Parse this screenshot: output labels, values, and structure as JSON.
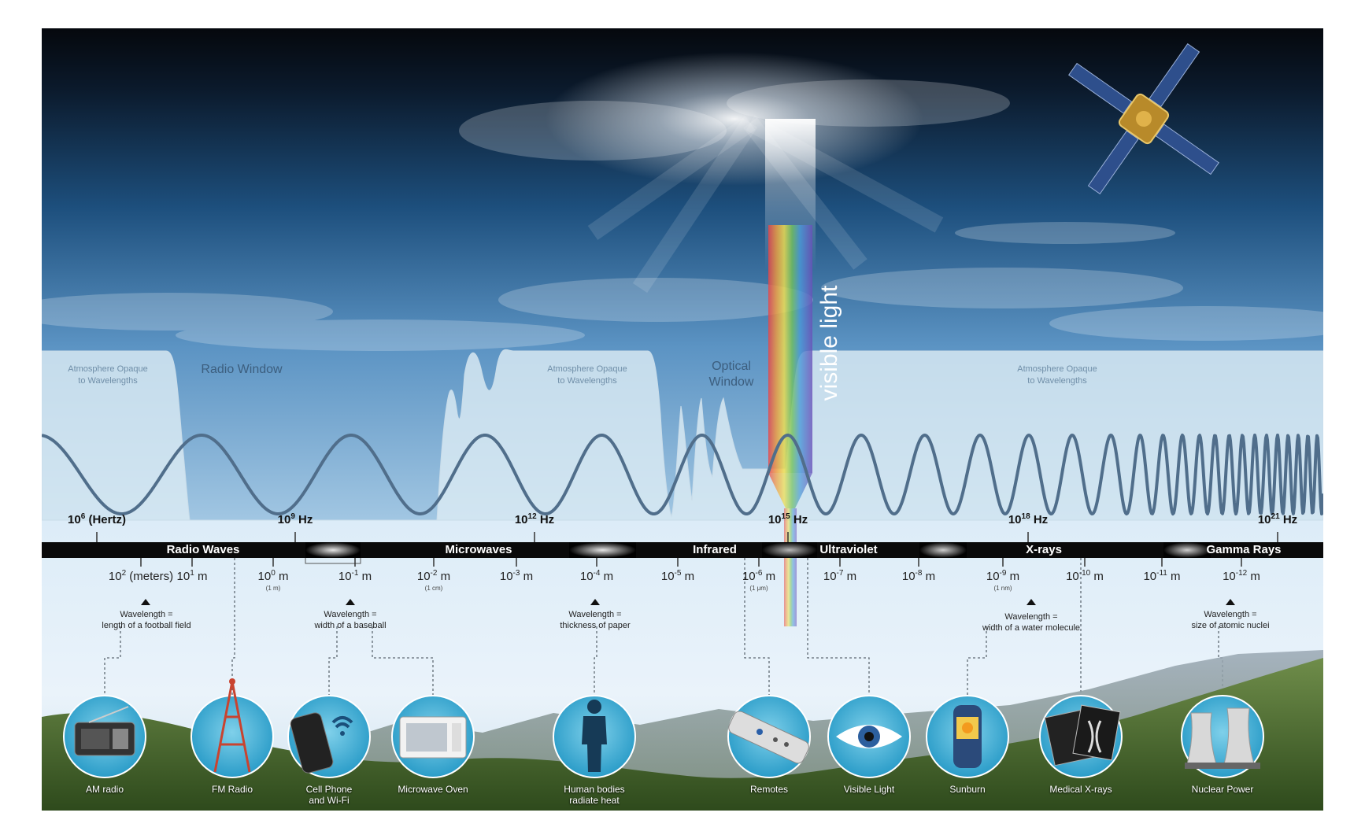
{
  "visible_light_label": "visible light",
  "regions": {
    "opaque": [
      "Atmosphere Opaque\nto Wavelengths",
      "Atmosphere Opaque\nto Wavelengths",
      "Atmosphere Opaque\nto Wavelengths"
    ],
    "radio_window": "Radio Window",
    "optical_window": "Optical\nWindow"
  },
  "frequency_ticks": [
    {
      "base": "10",
      "exp": "6",
      "suffix": " (Hertz)"
    },
    {
      "base": "10",
      "exp": "9",
      "suffix": " Hz"
    },
    {
      "base": "10",
      "exp": "12",
      "suffix": " Hz"
    },
    {
      "base": "10",
      "exp": "15",
      "suffix": " Hz"
    },
    {
      "base": "10",
      "exp": "18",
      "suffix": " Hz"
    },
    {
      "base": "10",
      "exp": "21",
      "suffix": " Hz"
    }
  ],
  "bands": [
    "Radio Waves",
    "Microwaves",
    "Infrared",
    "Ultraviolet",
    "X-rays",
    "Gamma Rays"
  ],
  "wavelength_ticks": [
    {
      "base": "10",
      "exp": "2",
      "suffix": " (meters)",
      "sub": ""
    },
    {
      "base": "10",
      "exp": "1",
      "suffix": " m",
      "sub": ""
    },
    {
      "base": "10",
      "exp": "0",
      "suffix": " m",
      "sub": "(1 m)"
    },
    {
      "base": "10",
      "exp": "-1",
      "suffix": " m",
      "sub": ""
    },
    {
      "base": "10",
      "exp": "-2",
      "suffix": " m",
      "sub": "(1 cm)"
    },
    {
      "base": "10",
      "exp": "-3",
      "suffix": " m",
      "sub": ""
    },
    {
      "base": "10",
      "exp": "-4",
      "suffix": " m",
      "sub": ""
    },
    {
      "base": "10",
      "exp": "-5",
      "suffix": " m",
      "sub": ""
    },
    {
      "base": "10",
      "exp": "-6",
      "suffix": " m",
      "sub": "(1 μm)"
    },
    {
      "base": "10",
      "exp": "-7",
      "suffix": " m",
      "sub": ""
    },
    {
      "base": "10",
      "exp": "-8",
      "suffix": " m",
      "sub": ""
    },
    {
      "base": "10",
      "exp": "-9",
      "suffix": " m",
      "sub": "(1 nm)"
    },
    {
      "base": "10",
      "exp": "-10",
      "suffix": " m",
      "sub": ""
    },
    {
      "base": "10",
      "exp": "-11",
      "suffix": " m",
      "sub": ""
    },
    {
      "base": "10",
      "exp": "-12",
      "suffix": " m",
      "sub": ""
    }
  ],
  "comparisons": [
    "Wavelength =\nlength of a football field",
    "Wavelength =\nwidth of a baseball",
    "Wavelength =\nthickness of paper",
    "Wavelength =\nwidth of a water molecule",
    "Wavelength =\nsize of atomic nuclei"
  ],
  "applications": [
    {
      "label": "AM radio",
      "icon": "radio-icon"
    },
    {
      "label": "FM Radio",
      "icon": "radio-tower-icon"
    },
    {
      "label": "Cell Phone\nand Wi-Fi",
      "icon": "cell-phone-icon"
    },
    {
      "label": "Microwave Oven",
      "icon": "microwave-oven-icon"
    },
    {
      "label": "Human bodies\nradiate heat",
      "icon": "human-silhouette-icon"
    },
    {
      "label": "Remotes",
      "icon": "remote-control-icon"
    },
    {
      "label": "Visible Light",
      "icon": "eye-icon"
    },
    {
      "label": "Sunburn",
      "icon": "sunscreen-bottle-icon"
    },
    {
      "label": "Medical X-rays",
      "icon": "x-ray-film-icon"
    },
    {
      "label": "Nuclear Power",
      "icon": "cooling-tower-icon"
    }
  ],
  "decorations": {
    "satellite": "satellite-icon"
  }
}
